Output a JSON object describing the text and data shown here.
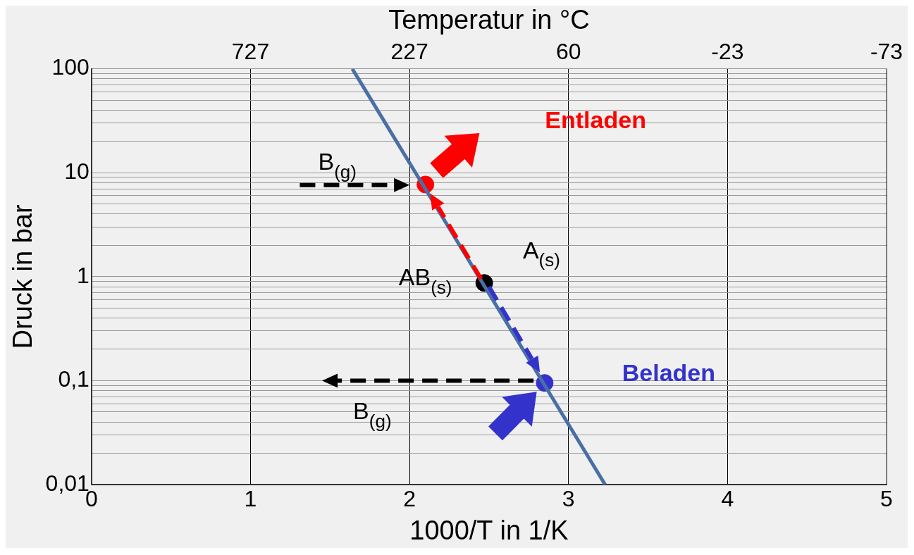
{
  "chart_data": {
    "type": "line",
    "xlabel": "1000/T in 1/K",
    "ylabel": "Druck in bar",
    "x2label": "Temperatur in °C",
    "xlim": [
      0,
      5
    ],
    "xticks": [
      0,
      1,
      2,
      3,
      4,
      5
    ],
    "ylim": [
      0.01,
      100
    ],
    "log": "y",
    "yticks": [
      {
        "value": 0.01,
        "label": "0,01"
      },
      {
        "value": 0.02,
        "label": null
      },
      {
        "value": 0.03,
        "label": null
      },
      {
        "value": 0.04,
        "label": null
      },
      {
        "value": 0.05,
        "label": null
      },
      {
        "value": 0.06,
        "label": null
      },
      {
        "value": 0.07,
        "label": null
      },
      {
        "value": 0.08,
        "label": null
      },
      {
        "value": 0.09,
        "label": null
      },
      {
        "value": 0.1,
        "label": "0,1"
      },
      {
        "value": 0.2,
        "label": null
      },
      {
        "value": 0.3,
        "label": null
      },
      {
        "value": 0.4,
        "label": null
      },
      {
        "value": 0.5,
        "label": null
      },
      {
        "value": 0.6,
        "label": null
      },
      {
        "value": 0.7,
        "label": null
      },
      {
        "value": 0.8,
        "label": null
      },
      {
        "value": 0.9,
        "label": null
      },
      1,
      {
        "value": 2,
        "label": null
      },
      {
        "value": 3,
        "label": null
      },
      {
        "value": 4,
        "label": null
      },
      {
        "value": 5,
        "label": null
      },
      {
        "value": 6,
        "label": null
      },
      {
        "value": 7,
        "label": null
      },
      {
        "value": 8,
        "label": null
      },
      {
        "value": 9,
        "label": null
      },
      10,
      {
        "value": 20,
        "label": null
      },
      {
        "value": 30,
        "label": null
      },
      {
        "value": 40,
        "label": null
      },
      {
        "value": 50,
        "label": null
      },
      {
        "value": 60,
        "label": null
      },
      {
        "value": 70,
        "label": null
      },
      {
        "value": 80,
        "label": null
      },
      {
        "value": 90,
        "label": null
      },
      100
    ],
    "grid": true,
    "legend": false,
    "series": [
      {
        "color": "#4a6fa5",
        "x": [
          1.64,
          3.23
        ],
        "values": [
          100,
          0.01
        ]
      },
      {
        "type": "scatter",
        "marker": "circle",
        "x": [
          2.1,
          2.47,
          2.85
        ],
        "values": [
          7.7,
          0.87,
          0.095
        ],
        "colors": [
          "#ff0000",
          "#000000",
          "#3333cc"
        ]
      }
    ],
    "annotations": [
      "Entladen",
      "Beladen",
      {
        "text": "B$_{(g)}$",
        "x": 2.1,
        "y": 7.7
      },
      {
        "text": "B$_{(g)}$",
        "x": 1.5,
        "y": 0.1
      },
      "A$_{(s)}$",
      "AB$_{(s)}$",
      "727",
      "227",
      "60",
      "-23",
      "-73"
    ]
  }
}
